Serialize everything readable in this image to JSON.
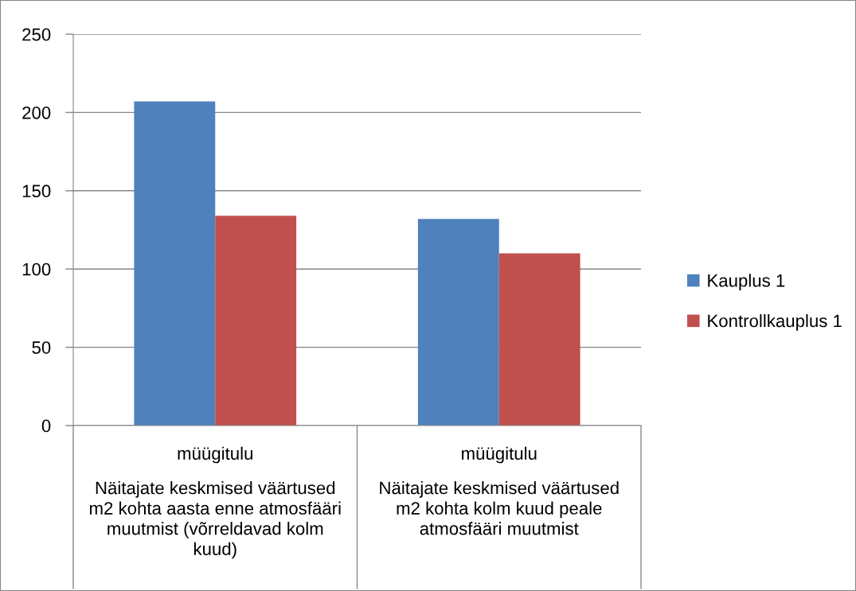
{
  "chart_data": {
    "type": "bar",
    "categories": [
      "müügitulu\nNäitajate keskmised väärtused m2 kohta aasta enne atmosfääri muutmist (võrreldavad kolm kuud)",
      "müügitulu\nNäitajate keskmised väärtused m2 kohta kolm kuud peale atmosfääri muutmist"
    ],
    "series": [
      {
        "name": "Kauplus 1",
        "color": "#4f81bd",
        "values": [
          207,
          132
        ]
      },
      {
        "name": "Kontrollkauplus 1",
        "color": "#c0504d",
        "values": [
          134,
          110
        ]
      }
    ],
    "ylim": [
      0,
      250
    ],
    "yticks": [
      0,
      50,
      100,
      150,
      200,
      250
    ],
    "grid": "y",
    "legend": "right"
  }
}
